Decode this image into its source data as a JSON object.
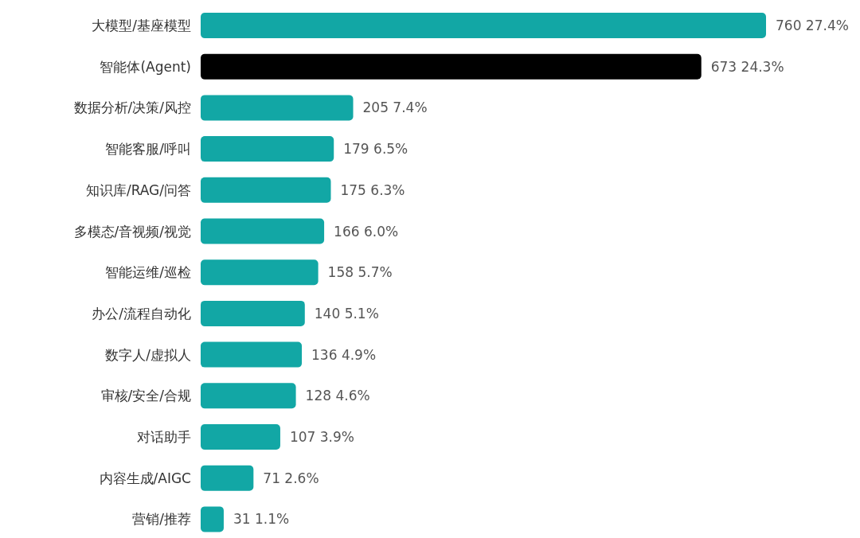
{
  "chart_data": {
    "type": "bar",
    "orientation": "horizontal",
    "categories": [
      "大模型/基座模型",
      "智能体(Agent)",
      "数据分析/决策/风控",
      "智能客服/呼叫",
      "知识库/RAG/问答",
      "多模态/音视频/视觉",
      "智能运维/巡检",
      "办公/流程自动化",
      "数字人/虚拟人",
      "审核/安全/合规",
      "对话助手",
      "内容生成/AIGC",
      "营销/推荐"
    ],
    "values": [
      760,
      673,
      205,
      179,
      175,
      166,
      158,
      140,
      136,
      128,
      107,
      71,
      31
    ],
    "value_labels": [
      "760 27.4%",
      "673 24.3%",
      "205 7.4%",
      "179 6.5%",
      "175 6.3%",
      "166 6.0%",
      "158 5.7%",
      "140 5.1%",
      "136 4.9%",
      "128 4.6%",
      "107 3.9%",
      "71 2.6%",
      "31 1.1%"
    ],
    "colors": [
      "#12a7a5",
      "#000000",
      "#12a7a5",
      "#12a7a5",
      "#12a7a5",
      "#12a7a5",
      "#12a7a5",
      "#12a7a5",
      "#12a7a5",
      "#12a7a5",
      "#12a7a5",
      "#12a7a5",
      "#12a7a5"
    ]
  }
}
